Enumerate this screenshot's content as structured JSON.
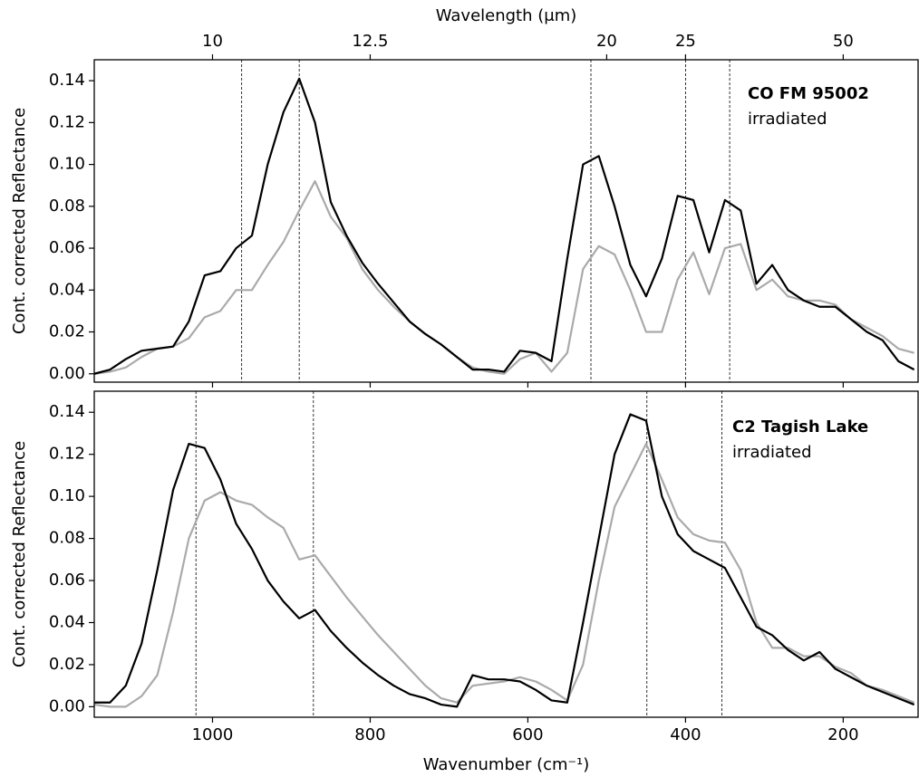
{
  "chart_data": [
    {
      "type": "line",
      "x2label": "Wavelength (μm)",
      "x2ticks": [
        10,
        12.5,
        20,
        25,
        50
      ],
      "ylabel": "Cont. corrected Reflectance",
      "xlim": [
        1150,
        105
      ],
      "ylim": [
        -0.004,
        0.15
      ],
      "yticks": [
        {
          "value": 0,
          "label": "0.00"
        },
        0.02,
        0.04,
        0.06,
        0.08,
        {
          "value": 0.1,
          "label": "0.10"
        },
        0.12,
        0.14
      ],
      "vlines": [
        963,
        890,
        520,
        400,
        344
      ],
      "x": [
        1150,
        1130,
        1110,
        1090,
        1070,
        1050,
        1030,
        1010,
        990,
        970,
        950,
        930,
        910,
        890,
        870,
        850,
        830,
        810,
        790,
        770,
        750,
        730,
        710,
        690,
        670,
        650,
        630,
        610,
        590,
        570,
        550,
        530,
        510,
        490,
        470,
        450,
        430,
        410,
        390,
        370,
        350,
        330,
        310,
        290,
        270,
        250,
        230,
        210,
        190,
        170,
        150,
        130,
        110
      ],
      "series": [
        {
          "name": "CO FM 95002",
          "color": "#000000",
          "values": [
            0.0,
            0.002,
            0.007,
            0.011,
            0.012,
            0.013,
            0.025,
            0.047,
            0.049,
            0.06,
            0.066,
            0.1,
            0.125,
            0.141,
            0.12,
            0.082,
            0.066,
            0.053,
            0.043,
            0.034,
            0.025,
            0.019,
            0.014,
            0.008,
            0.002,
            0.002,
            0.001,
            0.011,
            0.01,
            0.006,
            0.055,
            0.1,
            0.104,
            0.08,
            0.052,
            0.037,
            0.055,
            0.085,
            0.083,
            0.058,
            0.083,
            0.078,
            0.043,
            0.052,
            0.04,
            0.035,
            0.032,
            0.032,
            0.026,
            0.02,
            0.016,
            0.006,
            0.002
          ]
        },
        {
          "name": "irradiated",
          "color": "#aaaaaa",
          "values": [
            0.0,
            0.001,
            0.003,
            0.008,
            0.012,
            0.013,
            0.017,
            0.027,
            0.03,
            0.04,
            0.04,
            0.052,
            0.063,
            0.078,
            0.092,
            0.075,
            0.065,
            0.05,
            0.04,
            0.032,
            0.025,
            0.019,
            0.014,
            0.008,
            0.003,
            0.001,
            0.0,
            0.007,
            0.01,
            0.001,
            0.01,
            0.05,
            0.061,
            0.057,
            0.04,
            0.02,
            0.02,
            0.045,
            0.058,
            0.038,
            0.06,
            0.062,
            0.04,
            0.045,
            0.037,
            0.035,
            0.035,
            0.033,
            0.026,
            0.022,
            0.018,
            0.012,
            0.01
          ]
        }
      ]
    },
    {
      "type": "line",
      "xlabel": "Wavenumber (cm⁻¹)",
      "ylabel": "Cont. corrected Reflectance",
      "xlim": [
        1150,
        105
      ],
      "xticks": [
        1000,
        800,
        600,
        400,
        200
      ],
      "ylim": [
        -0.005,
        0.15
      ],
      "yticks": [
        {
          "value": 0,
          "label": "0.00"
        },
        0.02,
        0.04,
        0.06,
        0.08,
        {
          "value": 0.1,
          "label": "0.10"
        },
        0.12,
        0.14
      ],
      "vlines": [
        1021,
        872,
        449,
        354
      ],
      "x": [
        1150,
        1130,
        1110,
        1090,
        1070,
        1050,
        1030,
        1010,
        990,
        970,
        950,
        930,
        910,
        890,
        870,
        850,
        830,
        810,
        790,
        770,
        750,
        730,
        710,
        690,
        670,
        650,
        630,
        610,
        590,
        570,
        550,
        530,
        510,
        490,
        470,
        450,
        430,
        410,
        390,
        370,
        350,
        330,
        310,
        290,
        270,
        250,
        230,
        210,
        190,
        170,
        150,
        130,
        110
      ],
      "series": [
        {
          "name": "C2 Tagish Lake",
          "color": "#000000",
          "values": [
            0.002,
            0.002,
            0.01,
            0.03,
            0.065,
            0.103,
            0.125,
            0.123,
            0.108,
            0.087,
            0.075,
            0.06,
            0.05,
            0.042,
            0.046,
            0.036,
            0.028,
            0.021,
            0.015,
            0.01,
            0.006,
            0.004,
            0.001,
            0.0,
            0.015,
            0.013,
            0.013,
            0.012,
            0.008,
            0.003,
            0.002,
            0.04,
            0.08,
            0.12,
            0.139,
            0.136,
            0.1,
            0.082,
            0.074,
            0.07,
            0.066,
            0.052,
            0.038,
            0.034,
            0.027,
            0.022,
            0.026,
            0.018,
            0.014,
            0.01,
            0.007,
            0.004,
            0.001
          ]
        },
        {
          "name": "irradiated",
          "color": "#aaaaaa",
          "values": [
            0.001,
            0.0,
            0.0,
            0.005,
            0.015,
            0.045,
            0.08,
            0.098,
            0.102,
            0.098,
            0.096,
            0.09,
            0.085,
            0.07,
            0.072,
            0.062,
            0.052,
            0.043,
            0.034,
            0.026,
            0.018,
            0.01,
            0.004,
            0.002,
            0.01,
            0.011,
            0.012,
            0.014,
            0.012,
            0.008,
            0.003,
            0.02,
            0.06,
            0.095,
            0.11,
            0.125,
            0.108,
            0.09,
            0.082,
            0.079,
            0.078,
            0.065,
            0.04,
            0.028,
            0.028,
            0.024,
            0.024,
            0.019,
            0.016,
            0.01,
            0.008,
            0.005,
            0.002
          ]
        }
      ]
    }
  ]
}
